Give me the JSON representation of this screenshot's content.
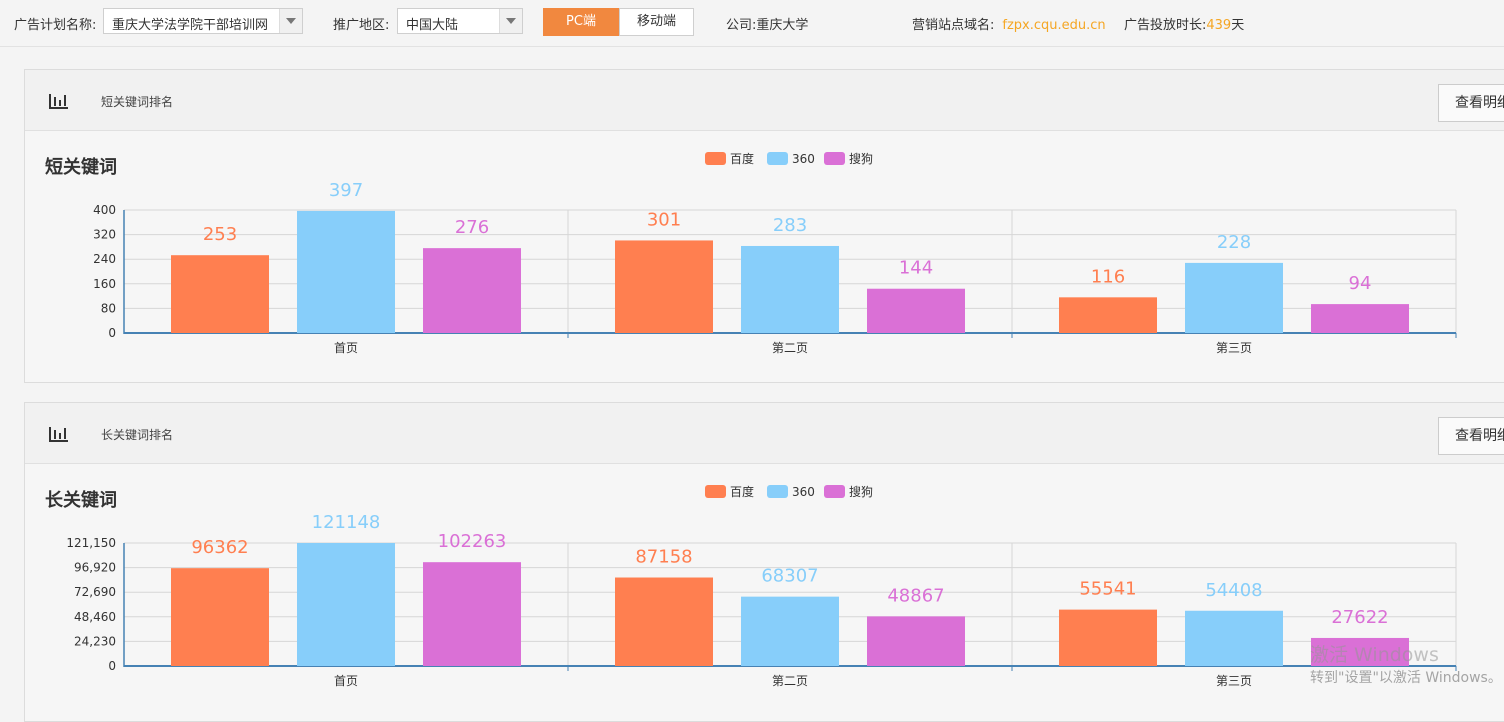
{
  "filters": {
    "plan_label": "广告计划名称:",
    "plan_value": "重庆大学法学院干部培训网",
    "region_label": "推广地区:",
    "region_value": "中国大陆",
    "pc_label": "PC端",
    "mobile_label": "移动端",
    "company_label": "公司:",
    "company_value": "重庆大学",
    "domain_label": "营销站点域名:",
    "domain_value": "fzpx.cqu.edu.cn",
    "duration_label": "广告投放时长:",
    "duration_value": "439",
    "duration_unit": "天"
  },
  "colors": {
    "accent": "#f1883f",
    "baidu": "#ff7f50",
    "s360": "#87cefa",
    "sogou": "#da70d6",
    "domain": "#f5a623"
  },
  "panels": [
    {
      "header_title": "短关键词排名",
      "detail_button": "查看明细",
      "chart_title": "短关键词"
    },
    {
      "header_title": "长关键词排名",
      "detail_button": "查看明细",
      "chart_title": "长关键词"
    }
  ],
  "watermark": {
    "line1": "激活 Windows",
    "line2": "转到\"设置\"以激活 Windows。"
  },
  "chart_data": [
    {
      "type": "bar",
      "categories": [
        "首页",
        "第二页",
        "第三页"
      ],
      "series": [
        {
          "name": "百度",
          "values": [
            253,
            301,
            116
          ]
        },
        {
          "name": "360",
          "values": [
            397,
            283,
            228
          ]
        },
        {
          "name": "搜狗",
          "values": [
            276,
            144,
            94
          ]
        }
      ],
      "ylim": [
        0,
        400
      ],
      "yticks": [
        "0",
        "80",
        "160",
        "240",
        "320",
        "400"
      ],
      "legend_position": "top-center",
      "grid": true
    },
    {
      "type": "bar",
      "categories": [
        "首页",
        "第二页",
        "第三页"
      ],
      "series": [
        {
          "name": "百度",
          "values": [
            96362,
            87158,
            55541
          ]
        },
        {
          "name": "360",
          "values": [
            121148,
            68307,
            54408
          ]
        },
        {
          "name": "搜狗",
          "values": [
            102263,
            48867,
            27622
          ]
        }
      ],
      "ylim": [
        0,
        121150
      ],
      "yticks": [
        "0",
        "24,230",
        "48,460",
        "72,690",
        "96,920",
        "121,150"
      ],
      "legend_position": "top-center",
      "grid": true
    }
  ]
}
